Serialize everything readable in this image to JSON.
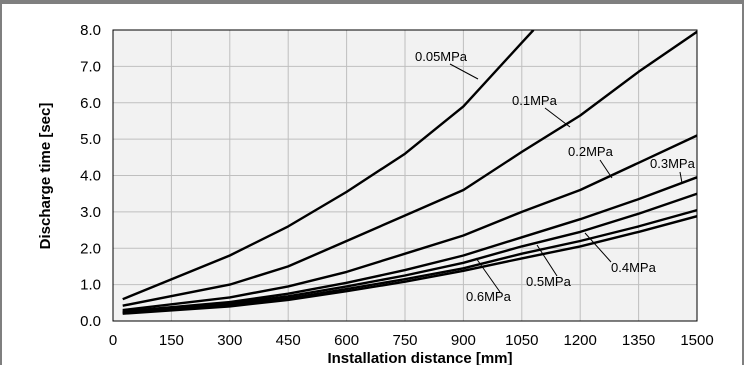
{
  "chart_data": {
    "type": "line",
    "xlabel": "Installation distance [mm]",
    "ylabel": "Discharge time [sec]",
    "xlim": [
      0,
      1500
    ],
    "ylim": [
      0,
      8
    ],
    "xticks": [
      0,
      150,
      300,
      450,
      600,
      750,
      900,
      1050,
      1200,
      1350,
      1500
    ],
    "xtick_labels": [
      "0",
      "150",
      "300",
      "450",
      "600",
      "750",
      "900",
      "1050",
      "1200",
      "1350",
      "1500"
    ],
    "yticks": [
      0,
      1,
      2,
      3,
      4,
      5,
      6,
      7,
      8
    ],
    "ytick_labels": [
      "0.0",
      "1.0",
      "2.0",
      "3.0",
      "4.0",
      "5.0",
      "6.0",
      "7.0",
      "8.0"
    ],
    "grid": true,
    "colors": {
      "plot_background": "#f2f2f2",
      "grid": "#bfbfbf",
      "line": "#000000",
      "frame": "#7f7f7f"
    },
    "series": [
      {
        "name": "0.05MPa",
        "x": [
          25,
          300,
          450,
          600,
          750,
          900,
          1050,
          1080
        ],
        "y": [
          0.6,
          1.8,
          2.6,
          3.55,
          4.6,
          5.9,
          7.65,
          8.0
        ]
      },
      {
        "name": "0.1MPa",
        "x": [
          25,
          300,
          450,
          600,
          750,
          900,
          1050,
          1200,
          1350,
          1500
        ],
        "y": [
          0.42,
          1.0,
          1.5,
          2.2,
          2.9,
          3.6,
          4.65,
          5.65,
          6.85,
          7.95
        ]
      },
      {
        "name": "0.2MPa",
        "x": [
          25,
          300,
          450,
          600,
          750,
          900,
          1050,
          1200,
          1350,
          1500
        ],
        "y": [
          0.3,
          0.65,
          0.95,
          1.35,
          1.85,
          2.35,
          3.0,
          3.6,
          4.35,
          5.1
        ]
      },
      {
        "name": "0.3MPa",
        "x": [
          25,
          300,
          450,
          600,
          750,
          900,
          1050,
          1200,
          1350,
          1500
        ],
        "y": [
          0.26,
          0.52,
          0.75,
          1.05,
          1.4,
          1.8,
          2.3,
          2.8,
          3.35,
          3.95
        ]
      },
      {
        "name": "0.4MPa",
        "x": [
          25,
          300,
          450,
          600,
          750,
          900,
          1050,
          1200,
          1350,
          1500
        ],
        "y": [
          0.24,
          0.48,
          0.68,
          0.95,
          1.25,
          1.6,
          2.05,
          2.45,
          2.95,
          3.5
        ]
      },
      {
        "name": "0.5MPa",
        "x": [
          25,
          300,
          450,
          600,
          750,
          900,
          1050,
          1200,
          1350,
          1500
        ],
        "y": [
          0.22,
          0.44,
          0.62,
          0.88,
          1.15,
          1.45,
          1.85,
          2.2,
          2.6,
          3.05
        ]
      },
      {
        "name": "0.6MPa",
        "x": [
          25,
          300,
          450,
          600,
          750,
          900,
          1050,
          1200,
          1350,
          1500
        ],
        "y": [
          0.2,
          0.4,
          0.58,
          0.82,
          1.08,
          1.38,
          1.72,
          2.05,
          2.45,
          2.88
        ]
      }
    ],
    "annotations": [
      {
        "text": "0.05MPa",
        "series": "0.05MPa"
      },
      {
        "text": "0.1MPa",
        "series": "0.1MPa"
      },
      {
        "text": "0.2MPa",
        "series": "0.2MPa"
      },
      {
        "text": "0.3MPa",
        "series": "0.3MPa"
      },
      {
        "text": "0.4MPa",
        "series": "0.4MPa"
      },
      {
        "text": "0.5MPa",
        "series": "0.5MPa"
      },
      {
        "text": "0.6MPa",
        "series": "0.6MPa"
      }
    ]
  }
}
